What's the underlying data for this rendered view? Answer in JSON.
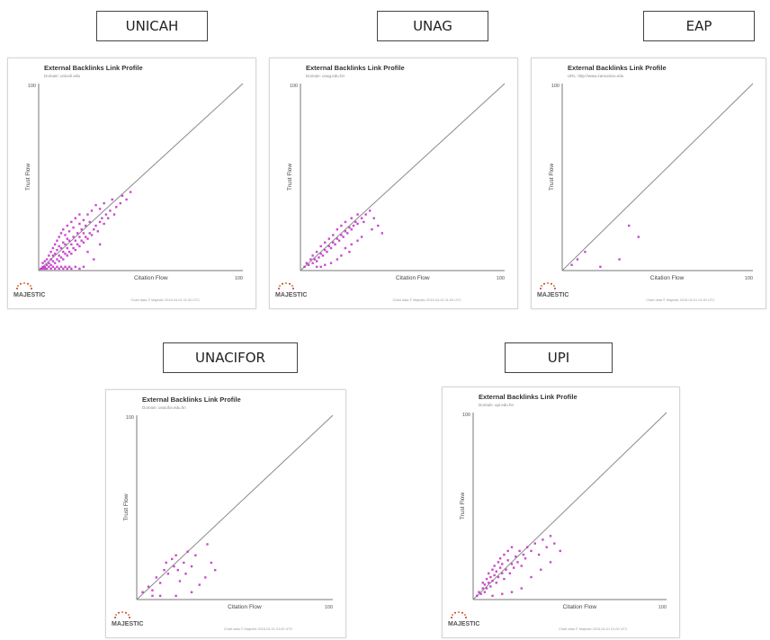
{
  "chart_data": [
    {
      "type": "scatter",
      "institution": "UNICAH",
      "title": "External Backlinks Link Profile",
      "subtitle": "Domain: unicah.edu",
      "xlabel": "Citation Flow",
      "ylabel": "Trust Flow",
      "xlim": [
        0,
        100
      ],
      "ylim": [
        0,
        100
      ],
      "x_ticks": [
        "100"
      ],
      "y_ticks": [
        "100"
      ],
      "footer": "Chart data © Majestic 2015-04-01 01:00 UTC",
      "logo": "MAJESTIC",
      "reference_line": true,
      "points": [
        [
          1,
          1
        ],
        [
          2,
          2
        ],
        [
          2,
          4
        ],
        [
          3,
          2
        ],
        [
          3,
          5
        ],
        [
          4,
          3
        ],
        [
          4,
          6
        ],
        [
          5,
          4
        ],
        [
          5,
          8
        ],
        [
          6,
          3
        ],
        [
          6,
          6
        ],
        [
          6,
          10
        ],
        [
          7,
          5
        ],
        [
          7,
          8
        ],
        [
          7,
          12
        ],
        [
          8,
          4
        ],
        [
          8,
          9
        ],
        [
          8,
          14
        ],
        [
          9,
          6
        ],
        [
          9,
          11
        ],
        [
          9,
          16
        ],
        [
          10,
          5
        ],
        [
          10,
          8
        ],
        [
          10,
          13
        ],
        [
          10,
          18
        ],
        [
          11,
          7
        ],
        [
          11,
          12
        ],
        [
          11,
          20
        ],
        [
          12,
          6
        ],
        [
          12,
          10
        ],
        [
          12,
          15
        ],
        [
          12,
          22
        ],
        [
          13,
          9
        ],
        [
          13,
          14
        ],
        [
          13,
          19
        ],
        [
          14,
          8
        ],
        [
          14,
          12
        ],
        [
          14,
          17
        ],
        [
          14,
          24
        ],
        [
          15,
          10
        ],
        [
          15,
          16
        ],
        [
          15,
          21
        ],
        [
          16,
          9
        ],
        [
          16,
          14
        ],
        [
          16,
          26
        ],
        [
          17,
          12
        ],
        [
          17,
          18
        ],
        [
          17,
          23
        ],
        [
          18,
          11
        ],
        [
          18,
          16
        ],
        [
          18,
          28
        ],
        [
          19,
          14
        ],
        [
          19,
          20
        ],
        [
          20,
          13
        ],
        [
          20,
          18
        ],
        [
          20,
          25
        ],
        [
          20,
          30
        ],
        [
          21,
          16
        ],
        [
          21,
          22
        ],
        [
          22,
          15
        ],
        [
          22,
          20
        ],
        [
          22,
          27
        ],
        [
          23,
          18
        ],
        [
          23,
          24
        ],
        [
          24,
          17
        ],
        [
          24,
          30
        ],
        [
          25,
          20
        ],
        [
          25,
          26
        ],
        [
          26,
          19
        ],
        [
          26,
          32
        ],
        [
          27,
          22
        ],
        [
          28,
          24
        ],
        [
          28,
          35
        ],
        [
          29,
          21
        ],
        [
          30,
          26
        ],
        [
          30,
          33
        ],
        [
          31,
          28
        ],
        [
          32,
          25
        ],
        [
          32,
          36
        ],
        [
          33,
          30
        ],
        [
          34,
          28
        ],
        [
          35,
          32
        ],
        [
          36,
          38
        ],
        [
          37,
          30
        ],
        [
          38,
          34
        ],
        [
          40,
          36
        ],
        [
          41,
          40
        ],
        [
          43,
          38
        ],
        [
          45,
          42
        ],
        [
          27,
          6
        ],
        [
          24,
          10
        ],
        [
          30,
          14
        ],
        [
          2,
          1
        ],
        [
          3,
          1
        ],
        [
          4,
          1
        ],
        [
          5,
          2
        ],
        [
          6,
          1
        ],
        [
          7,
          2
        ],
        [
          8,
          1
        ],
        [
          9,
          2
        ],
        [
          10,
          1
        ],
        [
          11,
          2
        ],
        [
          12,
          1
        ],
        [
          13,
          2
        ],
        [
          14,
          1
        ],
        [
          15,
          2
        ],
        [
          16,
          1
        ],
        [
          18,
          2
        ],
        [
          20,
          1
        ],
        [
          22,
          2
        ]
      ]
    },
    {
      "type": "scatter",
      "institution": "UNAG",
      "title": "External Backlinks Link Profile",
      "subtitle": "Domain: unag.edu.hn",
      "xlabel": "Citation Flow",
      "ylabel": "Trust Flow",
      "xlim": [
        0,
        100
      ],
      "ylim": [
        0,
        100
      ],
      "x_ticks": [
        "100"
      ],
      "y_ticks": [
        "100"
      ],
      "footer": "Chart data © Majestic 2015-04-01 01:00 UTC",
      "logo": "MAJESTIC",
      "reference_line": true,
      "points": [
        [
          2,
          2
        ],
        [
          3,
          4
        ],
        [
          4,
          3
        ],
        [
          5,
          6
        ],
        [
          6,
          4
        ],
        [
          6,
          8
        ],
        [
          7,
          6
        ],
        [
          8,
          5
        ],
        [
          8,
          10
        ],
        [
          9,
          7
        ],
        [
          10,
          9
        ],
        [
          10,
          13
        ],
        [
          11,
          8
        ],
        [
          12,
          11
        ],
        [
          12,
          15
        ],
        [
          13,
          10
        ],
        [
          14,
          13
        ],
        [
          14,
          17
        ],
        [
          15,
          12
        ],
        [
          16,
          15
        ],
        [
          16,
          19
        ],
        [
          17,
          14
        ],
        [
          18,
          17
        ],
        [
          18,
          22
        ],
        [
          19,
          16
        ],
        [
          20,
          19
        ],
        [
          20,
          24
        ],
        [
          21,
          18
        ],
        [
          22,
          21
        ],
        [
          22,
          26
        ],
        [
          23,
          20
        ],
        [
          24,
          23
        ],
        [
          25,
          22
        ],
        [
          25,
          28
        ],
        [
          26,
          24
        ],
        [
          27,
          26
        ],
        [
          28,
          25
        ],
        [
          28,
          30
        ],
        [
          30,
          28
        ],
        [
          31,
          26
        ],
        [
          32,
          30
        ],
        [
          34,
          32
        ],
        [
          35,
          22
        ],
        [
          36,
          28
        ],
        [
          38,
          24
        ],
        [
          40,
          20
        ],
        [
          20,
          8
        ],
        [
          25,
          14
        ],
        [
          30,
          18
        ],
        [
          15,
          4
        ],
        [
          18,
          6
        ],
        [
          24,
          10
        ],
        [
          12,
          3
        ],
        [
          10,
          2
        ],
        [
          8,
          2
        ],
        [
          22,
          12
        ],
        [
          28,
          16
        ]
      ]
    },
    {
      "type": "scatter",
      "institution": "EAP",
      "title": "External Backlinks Link Profile",
      "subtitle": "URL: http://www.zamorano.edu",
      "xlabel": "Citation Flow",
      "ylabel": "Trust Flow",
      "xlim": [
        0,
        100
      ],
      "ylim": [
        0,
        100
      ],
      "x_ticks": [
        "100"
      ],
      "y_ticks": [
        "100"
      ],
      "footer": "Chart data © Majestic 2015-04-01 01:00 UTC",
      "logo": "MAJESTIC",
      "reference_line": true,
      "points": [
        [
          5,
          3
        ],
        [
          8,
          6
        ],
        [
          12,
          10
        ],
        [
          20,
          2
        ],
        [
          30,
          6
        ],
        [
          35,
          24
        ],
        [
          40,
          18
        ]
      ]
    },
    {
      "type": "scatter",
      "institution": "UNACIFOR",
      "title": "External Backlinks Link Profile",
      "subtitle": "Domain: unacifor.edu.hn",
      "xlabel": "Citation Flow",
      "ylabel": "Trust Flow",
      "xlim": [
        0,
        100
      ],
      "ylim": [
        0,
        100
      ],
      "x_ticks": [
        "100"
      ],
      "y_ticks": [
        "100"
      ],
      "footer": "Chart data © Majestic 2015-04-01 01:00 UTC",
      "logo": "MAJESTIC",
      "reference_line": true,
      "points": [
        [
          3,
          4
        ],
        [
          6,
          7
        ],
        [
          8,
          5
        ],
        [
          10,
          12
        ],
        [
          12,
          9
        ],
        [
          14,
          16
        ],
        [
          15,
          20
        ],
        [
          16,
          14
        ],
        [
          18,
          22
        ],
        [
          19,
          18
        ],
        [
          20,
          24
        ],
        [
          21,
          16
        ],
        [
          22,
          10
        ],
        [
          24,
          20
        ],
        [
          25,
          14
        ],
        [
          26,
          26
        ],
        [
          28,
          18
        ],
        [
          30,
          24
        ],
        [
          32,
          8
        ],
        [
          35,
          12
        ],
        [
          36,
          30
        ],
        [
          38,
          20
        ],
        [
          40,
          16
        ],
        [
          12,
          2
        ],
        [
          20,
          2
        ],
        [
          28,
          4
        ],
        [
          8,
          2
        ]
      ]
    },
    {
      "type": "scatter",
      "institution": "UPI",
      "title": "External Backlinks Link Profile",
      "subtitle": "Domain: upi.edu.hn",
      "xlabel": "Citation Flow",
      "ylabel": "Trust Flow",
      "xlim": [
        0,
        100
      ],
      "ylim": [
        0,
        100
      ],
      "x_ticks": [
        "100"
      ],
      "y_ticks": [
        "100"
      ],
      "footer": "Chart data © Majestic 2015-04-01 01:00 UTC",
      "logo": "MAJESTIC",
      "reference_line": true,
      "points": [
        [
          2,
          2
        ],
        [
          3,
          4
        ],
        [
          4,
          3
        ],
        [
          5,
          6
        ],
        [
          5,
          9
        ],
        [
          6,
          4
        ],
        [
          6,
          8
        ],
        [
          7,
          11
        ],
        [
          7,
          6
        ],
        [
          8,
          9
        ],
        [
          8,
          14
        ],
        [
          9,
          7
        ],
        [
          9,
          12
        ],
        [
          10,
          16
        ],
        [
          10,
          10
        ],
        [
          11,
          13
        ],
        [
          11,
          18
        ],
        [
          12,
          9
        ],
        [
          12,
          15
        ],
        [
          13,
          20
        ],
        [
          13,
          12
        ],
        [
          14,
          17
        ],
        [
          14,
          22
        ],
        [
          15,
          14
        ],
        [
          15,
          19
        ],
        [
          16,
          24
        ],
        [
          16,
          11
        ],
        [
          17,
          16
        ],
        [
          18,
          21
        ],
        [
          18,
          26
        ],
        [
          19,
          14
        ],
        [
          20,
          19
        ],
        [
          20,
          28
        ],
        [
          21,
          17
        ],
        [
          22,
          23
        ],
        [
          23,
          20
        ],
        [
          24,
          26
        ],
        [
          25,
          18
        ],
        [
          26,
          24
        ],
        [
          27,
          22
        ],
        [
          28,
          28
        ],
        [
          30,
          26
        ],
        [
          32,
          30
        ],
        [
          34,
          24
        ],
        [
          36,
          32
        ],
        [
          38,
          28
        ],
        [
          40,
          34
        ],
        [
          42,
          30
        ],
        [
          25,
          6
        ],
        [
          30,
          12
        ],
        [
          35,
          16
        ],
        [
          20,
          4
        ],
        [
          15,
          3
        ],
        [
          10,
          2
        ],
        [
          40,
          20
        ],
        [
          45,
          26
        ]
      ]
    }
  ]
}
